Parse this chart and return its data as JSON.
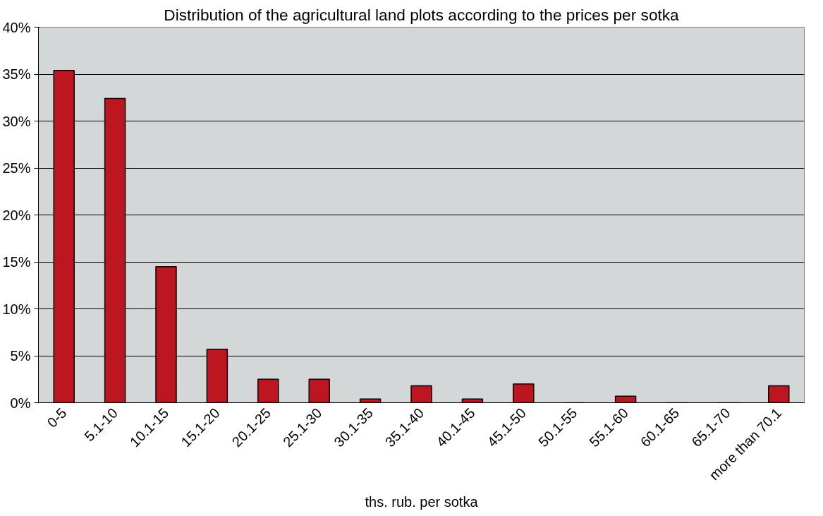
{
  "chart_data": {
    "type": "bar",
    "title": "Distribution of the agricultural land plots according to the prices per sotka",
    "xlabel": "ths. rub. per sotka",
    "categories": [
      "0-5",
      "5.1-10",
      "10.1-15",
      "15.1-20",
      "20.1-25",
      "25.1-30",
      "30.1-35",
      "35.1-40",
      "40.1-45",
      "45.1-50",
      "50.1-55",
      "55.1-60",
      "60.1-65",
      "65.1-70",
      "more than 70.1"
    ],
    "values": [
      35.4,
      32.4,
      14.5,
      5.7,
      2.5,
      2.5,
      0.4,
      1.8,
      0.4,
      2.0,
      0,
      0.7,
      0,
      0,
      1.8
    ],
    "color": "#be1621",
    "ylim": [
      0,
      40
    ],
    "yticks": [
      {
        "value": 0,
        "label": "0%"
      },
      {
        "value": 5,
        "label": "5%"
      },
      {
        "value": 10,
        "label": "10%"
      },
      {
        "value": 15,
        "label": "15%"
      },
      {
        "value": 20,
        "label": "20%"
      },
      {
        "value": 25,
        "label": "25%"
      },
      {
        "value": 30,
        "label": "30%"
      },
      {
        "value": 35,
        "label": "35%"
      },
      {
        "value": 40,
        "label": "40%"
      }
    ],
    "grid": "y"
  }
}
